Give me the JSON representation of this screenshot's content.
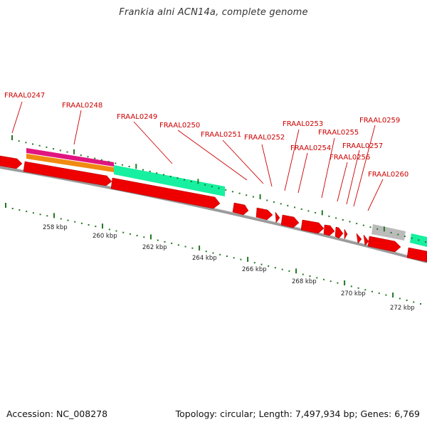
{
  "title": "Frankia alni ACN14a, complete genome",
  "footer": {
    "accession": "Accession: NC_008278",
    "summary": "Topology: circular; Length: 7,497,934 bp; Genes: 6,769"
  },
  "colors": {
    "gene": "#ee0000",
    "label": "#cc0000",
    "tick": "#227722",
    "backbone": "#888888",
    "feature_magenta": "#e0157f",
    "feature_orange": "#f08a10",
    "feature_green": "#16f0a0",
    "feature_grey": "#bbbbbb"
  },
  "genes": [
    {
      "name": "FRAAL0247"
    },
    {
      "name": "FRAAL0248"
    },
    {
      "name": "FRAAL0249"
    },
    {
      "name": "FRAAL0250"
    },
    {
      "name": "FRAAL0251"
    },
    {
      "name": "FRAAL0252"
    },
    {
      "name": "FRAAL0253"
    },
    {
      "name": "FRAAL0254"
    },
    {
      "name": "FRAAL0255"
    },
    {
      "name": "FRAAL0256"
    },
    {
      "name": "FRAAL0257"
    },
    {
      "name": "FRAAL0259"
    },
    {
      "name": "FRAAL0260"
    }
  ],
  "scale_labels": [
    "258 kbp",
    "260 kbp",
    "262 kbp",
    "264 kbp",
    "266 kbp",
    "268 kbp",
    "270 kbp",
    "272 kbp"
  ]
}
